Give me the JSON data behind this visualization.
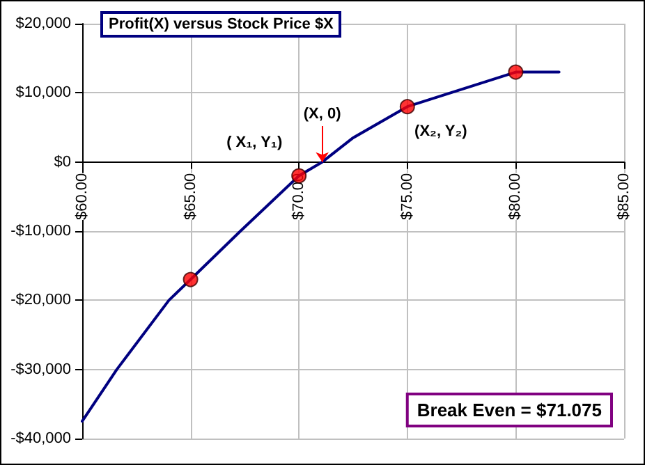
{
  "chart_data": {
    "type": "line",
    "title": "Profit(X) versus Stock Price $X",
    "x": [
      60,
      61.6,
      64,
      65,
      67.3,
      70,
      71.075,
      72.5,
      75,
      77.6,
      80,
      82
    ],
    "series": [
      {
        "type": "line",
        "color": "#000080",
        "marker": "none",
        "values": [
          -37500,
          -30000,
          -20000,
          -17000,
          -10000,
          -2000,
          0,
          3500,
          8000,
          10600,
          13000,
          13000
        ]
      },
      {
        "type": "scatter",
        "color": "#ff0000",
        "marker": "circle",
        "x": [
          65,
          70,
          75,
          80
        ],
        "values": [
          -17000,
          -2000,
          8000,
          13000
        ]
      }
    ],
    "xlim": [
      60,
      85
    ],
    "xticks": [
      {
        "value": 60,
        "label": "$60.00"
      },
      {
        "value": 65,
        "label": "$65.00"
      },
      {
        "value": 70,
        "label": "$70.00"
      },
      {
        "value": 75,
        "label": "$75.00"
      },
      {
        "value": 80,
        "label": "$80.00"
      },
      {
        "value": 85,
        "label": "$85.00"
      }
    ],
    "ylim": [
      -40000,
      20000
    ],
    "yticks": [
      {
        "value": -40000,
        "label": "-$40,000"
      },
      {
        "value": -30000,
        "label": "-$30,000"
      },
      {
        "value": -20000,
        "label": "-$20,000"
      },
      {
        "value": -10000,
        "label": "-$10,000"
      },
      {
        "value": 0,
        "label": "$0"
      },
      {
        "value": 10000,
        "label": "$10,000"
      },
      {
        "value": 20000,
        "label": "$20,000"
      }
    ],
    "grid": true,
    "annotations": [
      {
        "text": "(X, 0)",
        "x": 71.075,
        "y": 0
      },
      {
        "text": "( X₁, Y₁)",
        "x": 70,
        "y": -2000
      },
      {
        "text": "(X₂, Y₂)",
        "x": 75,
        "y": 8000
      },
      "Break Even = $71.075"
    ]
  }
}
